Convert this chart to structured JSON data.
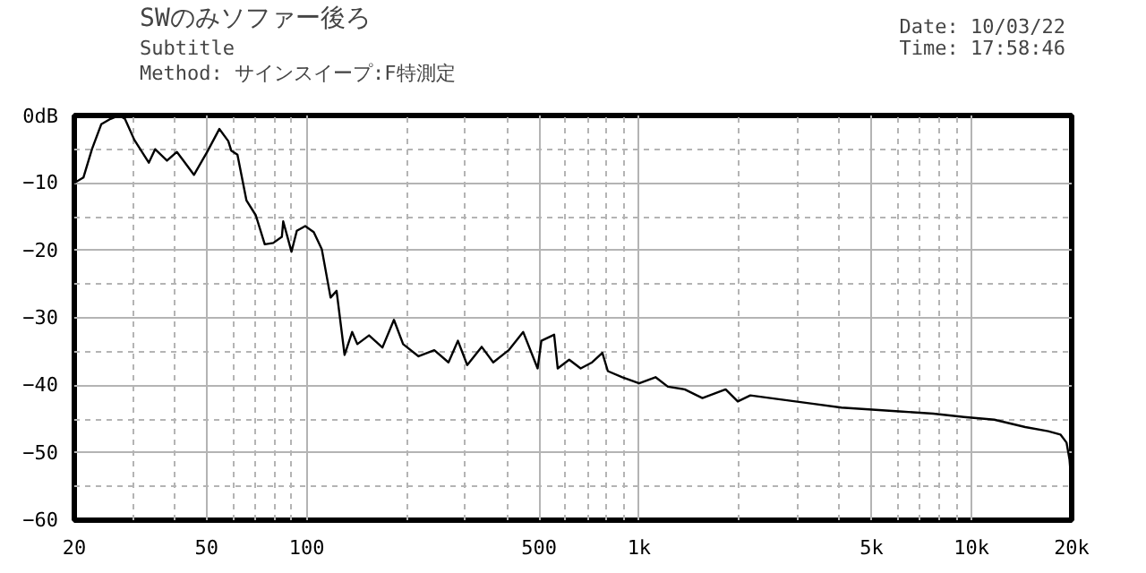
{
  "chart_data": {
    "type": "line",
    "title": "SWのみソファー後ろ",
    "subtitle": "Subtitle",
    "annotations": [
      "Method: サインスイープ:F特測定",
      "Date: 10/03/22",
      "Time: 17:58:46"
    ],
    "log": "x",
    "grid": true,
    "marker": "none",
    "line_style": "solid",
    "xlim": [
      20,
      20000
    ],
    "ylim": [
      -60,
      0
    ],
    "xticks": [
      20,
      {
        "value": 30,
        "label": null
      },
      {
        "value": 40,
        "label": null
      },
      50,
      {
        "value": 60,
        "label": null
      },
      {
        "value": 70,
        "label": null
      },
      {
        "value": 80,
        "label": null
      },
      {
        "value": 90,
        "label": null
      },
      100,
      {
        "value": 200,
        "label": null
      },
      {
        "value": 300,
        "label": null
      },
      {
        "value": 400,
        "label": null
      },
      500,
      {
        "value": 600,
        "label": null
      },
      {
        "value": 700,
        "label": null
      },
      {
        "value": 800,
        "label": null
      },
      {
        "value": 900,
        "label": null
      },
      {
        "value": 1000,
        "label": "1k"
      },
      {
        "value": 2000,
        "label": null
      },
      {
        "value": 3000,
        "label": null
      },
      {
        "value": 4000,
        "label": null
      },
      {
        "value": 5000,
        "label": "5k"
      },
      {
        "value": 6000,
        "label": null
      },
      {
        "value": 7000,
        "label": null
      },
      {
        "value": 8000,
        "label": null
      },
      {
        "value": 9000,
        "label": null
      },
      {
        "value": 10000,
        "label": "10k"
      },
      {
        "value": 20000,
        "label": "20k"
      }
    ],
    "yticks": [
      -60,
      {
        "value": -55,
        "label": null
      },
      -50,
      {
        "value": -45,
        "label": null
      },
      -40,
      {
        "value": -35,
        "label": null
      },
      -30,
      {
        "value": -25,
        "label": null
      },
      -20,
      {
        "value": -15,
        "label": null
      },
      -10,
      {
        "value": -5,
        "label": null
      },
      {
        "value": 0,
        "label": "0dB"
      }
    ],
    "series": [
      {
        "color": "#000000",
        "x": [
          20,
          21.3,
          22.6,
          24.1,
          25.7,
          27.3,
          28.4,
          30.3,
          33.5,
          35,
          38,
          40.7,
          42.6,
          45.8,
          50.2,
          54.6,
          58.1,
          59.3,
          61.9,
          65.9,
          70.3,
          74.8,
          79.3,
          84.2,
          85,
          90,
          93.4,
          99,
          105,
          111,
          118,
          123,
          130,
          137,
          142,
          154,
          169,
          183,
          195,
          217,
          242,
          267,
          285,
          304,
          336,
          364,
          405,
          448,
          495,
          508,
          555,
          569,
          616,
          667,
          722,
          775,
          805,
          890,
          1000,
          1120,
          1220,
          1370,
          1550,
          1820,
          1980,
          2160,
          2660,
          3280,
          4060,
          5020,
          6200,
          7670,
          9480,
          11700,
          14500,
          17000,
          18500,
          19300,
          19700,
          20000
        ],
        "values": [
          -10,
          -9.2,
          -5,
          -1.3,
          -0.5,
          0,
          -0.5,
          -3.6,
          -7,
          -5,
          -6.7,
          -5.4,
          -6.7,
          -8.8,
          -5.4,
          -2,
          -3.8,
          -5.2,
          -5.8,
          -12.6,
          -14.8,
          -19.1,
          -18.9,
          -18,
          -15.7,
          -20.2,
          -17.1,
          -16.4,
          -17.3,
          -19.8,
          -27,
          -26,
          -35.5,
          -32.1,
          -33.9,
          -32.6,
          -34.4,
          -30.3,
          -33.9,
          -35.7,
          -34.8,
          -36.6,
          -33.4,
          -37,
          -34.3,
          -36.6,
          -34.8,
          -32.1,
          -37.5,
          -33.4,
          -32.5,
          -37.5,
          -36.2,
          -37.5,
          -36.6,
          -35.2,
          -37.9,
          -38.8,
          -39.7,
          -38.8,
          -40.2,
          -40.6,
          -41.9,
          -40.6,
          -42.4,
          -41.5,
          -42.1,
          -42.7,
          -43.3,
          -43.6,
          -43.9,
          -44.2,
          -44.7,
          -45.1,
          -46.2,
          -46.8,
          -47.3,
          -48.5,
          -51,
          -55
        ]
      }
    ]
  }
}
